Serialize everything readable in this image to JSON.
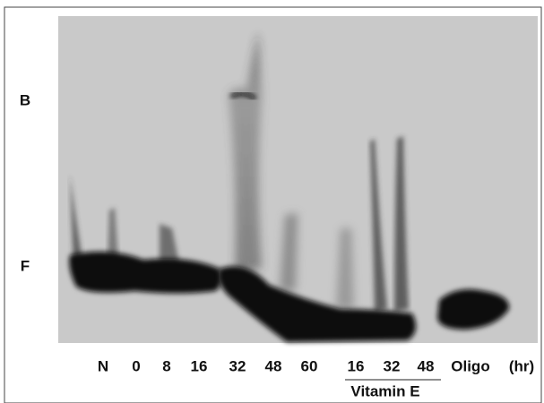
{
  "side_labels": [
    "B",
    "F"
  ],
  "lanes": [
    "N",
    "0",
    "8",
    "16",
    "32",
    "48",
    "60",
    "16",
    "32",
    "48",
    "Oligo"
  ],
  "unit": "(hr)",
  "group_label": "Vitamin E"
}
